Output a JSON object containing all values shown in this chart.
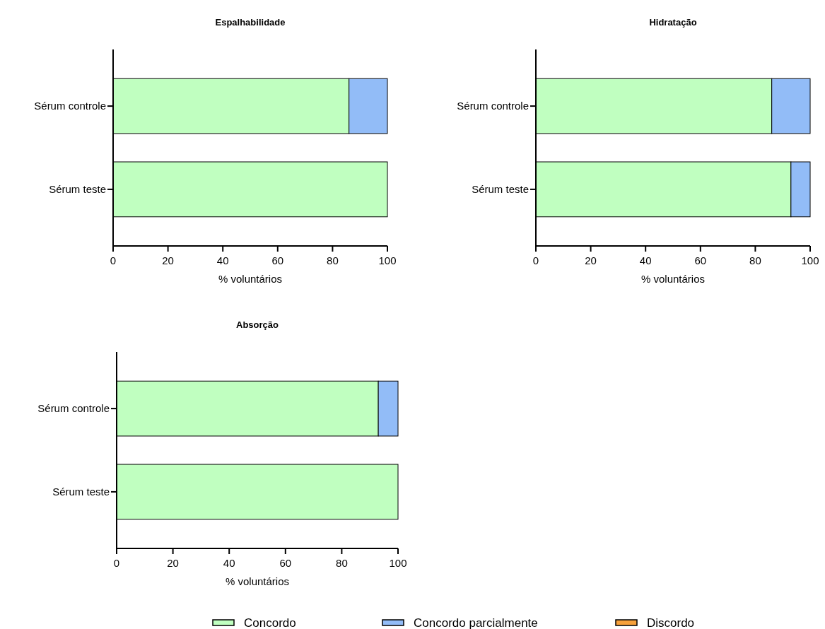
{
  "chart_data": [
    {
      "type": "bar",
      "orientation": "horizontal",
      "stacked": true,
      "title": "Espalhabilidade",
      "xlabel": "% voluntários",
      "categories": [
        "Sérum controle",
        "Sérum teste"
      ],
      "series": [
        {
          "color": "#c0ffc0",
          "values": [
            86,
            100
          ]
        },
        {
          "color": "#92bcf7",
          "values": [
            14,
            0
          ]
        },
        {
          "color": "#f7a13b",
          "values": [
            0,
            0
          ]
        }
      ],
      "xlim": [
        0,
        100
      ],
      "xticks": [
        0,
        20,
        40,
        60,
        80,
        100
      ]
    },
    {
      "type": "bar",
      "orientation": "horizontal",
      "stacked": true,
      "title": "Hidratação",
      "xlabel": "% voluntários",
      "categories": [
        "Sérum controle",
        "Sérum teste"
      ],
      "series": [
        {
          "color": "#c0ffc0",
          "values": [
            86,
            93
          ]
        },
        {
          "color": "#92bcf7",
          "values": [
            14,
            7
          ]
        },
        {
          "color": "#f7a13b",
          "values": [
            0,
            0
          ]
        }
      ],
      "xlim": [
        0,
        100
      ],
      "xticks": [
        0,
        20,
        40,
        60,
        80,
        100
      ]
    },
    {
      "type": "bar",
      "orientation": "horizontal",
      "stacked": true,
      "title": "Absorção",
      "xlabel": "% voluntários",
      "categories": [
        "Sérum controle",
        "Sérum teste"
      ],
      "series": [
        {
          "name": "Concordo",
          "color": "#c0ffc0",
          "values": [
            93,
            100
          ]
        },
        {
          "name": "Concordo parcialmente",
          "color": "#92bcf7",
          "values": [
            7,
            0
          ]
        },
        {
          "name": "Discordo",
          "color": "#f7a13b",
          "values": [
            0,
            0
          ]
        }
      ],
      "xlim": [
        0,
        100
      ],
      "xticks": [
        0,
        20,
        40,
        60,
        80,
        100
      ],
      "legend": "bottom"
    }
  ]
}
